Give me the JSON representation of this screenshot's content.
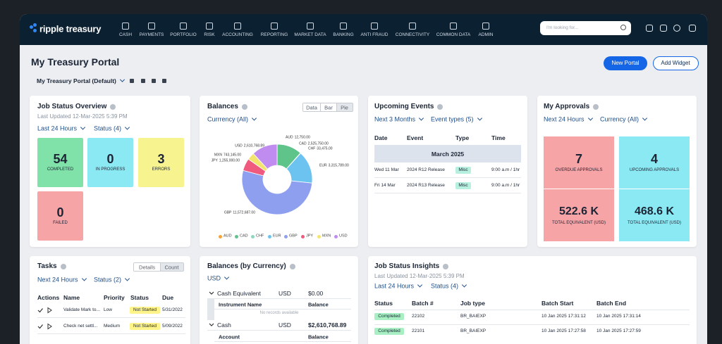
{
  "brand": "ripple treasury",
  "nav": [
    "CASH",
    "PAYMENTS",
    "PORTFOLIO",
    "RISK",
    "ACCOUNTING",
    "REPORTING",
    "MARKET DATA",
    "BANKING",
    "ANTI FRAUD",
    "CONNECTIVITY",
    "COMMON DATA",
    "ADMIN"
  ],
  "search_placeholder": "I'm looking for...",
  "page_title": "My Treasury Portal",
  "buttons": [
    "New Portal",
    "Add Widget"
  ],
  "portal_selector": "My Treasury Portal (Default)",
  "job_status_overview": {
    "title": "Job Status Overview",
    "last_updated": "Last Updated 12-Mar-2025 5:39 PM",
    "filters": [
      "Last 24 Hours",
      "Status (4)"
    ],
    "tiles": [
      {
        "count": 54,
        "label": "COMPLETED"
      },
      {
        "count": 0,
        "label": "IN PROGRESS"
      },
      {
        "count": 3,
        "label": "ERRORS"
      },
      {
        "count": 0,
        "label": "FAILED"
      }
    ]
  },
  "balances": {
    "title": "Balances",
    "tabs": [
      "Data",
      "Bar",
      "Pie"
    ],
    "filter": "Currrency (All)",
    "chart": {
      "type": "pie",
      "categories": [
        "AUD",
        "CAD",
        "CHF",
        "EUR",
        "GBP",
        "JPY",
        "MXN",
        "USD"
      ],
      "values": [
        12750,
        2525750,
        33475,
        3315789,
        11572687,
        1255000,
        743145,
        2610768.89
      ],
      "value_labels": [
        "12,750.00",
        "2,525,750.00",
        "33,475.00",
        "3,315,789.00",
        "11,572,687.00",
        "1,255,000.00",
        "743,145.00",
        "2,610,768.89"
      ],
      "colors": [
        "#f3a43b",
        "#5ec48a",
        "#8fd6c2",
        "#6cc3ef",
        "#8f9ff0",
        "#ef5a7e",
        "#f3e46e",
        "#c18cf0"
      ]
    }
  },
  "upcoming_events": {
    "title": "Upcoming Events",
    "filters": [
      "Next 3 Months",
      "Event types (5)"
    ],
    "columns": [
      "Date",
      "Event",
      "Type",
      "Time"
    ],
    "month": "March 2025",
    "rows": [
      [
        "Wed 11 Mar",
        "2024 R12 Release",
        "Misc",
        "9:00 a.m / 1hr"
      ],
      [
        "Fri 14 Mar",
        "2024 R13 Release",
        "Misc",
        "9:00 a.m / 1hr"
      ]
    ]
  },
  "my_approvals": {
    "title": "My Approvals",
    "filters": [
      "Next 24 Hours",
      "Currency (All)"
    ],
    "tiles": [
      {
        "value": 7,
        "label": "OVERDUE APPROVALS"
      },
      {
        "value": 4,
        "label": "UPCOMING APPROVALS"
      },
      {
        "value": "522.6 K",
        "label": "TOTAL EQUIVALENT (USD)"
      },
      {
        "value": "468.6 K",
        "label": "TOTAL EQUIVALENT (USD)"
      }
    ]
  },
  "tasks": {
    "title": "Tasks",
    "tabs": [
      "Details",
      "Count"
    ],
    "filters": [
      "Next 24 Hours",
      "Status (2)"
    ],
    "columns": [
      "Actions",
      "Name",
      "Priority",
      "Status",
      "Due"
    ],
    "rows": [
      [
        "Validate Mark to...",
        "Low",
        "Not Started",
        "5/31/2022"
      ],
      [
        "Check net settl...",
        "Medium",
        "Not Started",
        "5/09/2022"
      ]
    ]
  },
  "balances_by_currency": {
    "title": "Balances (by Currency)",
    "filter": "USD",
    "groups": [
      {
        "name": "Cash Equivalent",
        "currency": "USD",
        "amount": "$0.00",
        "columns": [
          "Instrument Name",
          "Balance"
        ],
        "empty": "No records available"
      },
      {
        "name": "Cash",
        "currency": "USD",
        "amount": "$2,610,768.89",
        "columns": [
          "Account",
          "Balance"
        ]
      }
    ]
  },
  "job_status_insights": {
    "title": "Job Status Insights",
    "last_updated": "Last Updated 12-Mar-2025 5:39 PM",
    "filters": [
      "Last 24 Hours",
      "Status (4)"
    ],
    "columns": [
      "Status",
      "Batch #",
      "Job type",
      "Batch Start",
      "Batch End"
    ],
    "rows": [
      [
        "Completed",
        "22102",
        "BR_BAIEXP",
        "10 Jan 2025 17:31:12",
        "10 Jan 2025 17:31:14"
      ],
      [
        "Completed",
        "22101",
        "BR_BAIEXP",
        "10 Jan 2025 17:27:58",
        "10 Jan 2025 17:27:59"
      ]
    ]
  }
}
